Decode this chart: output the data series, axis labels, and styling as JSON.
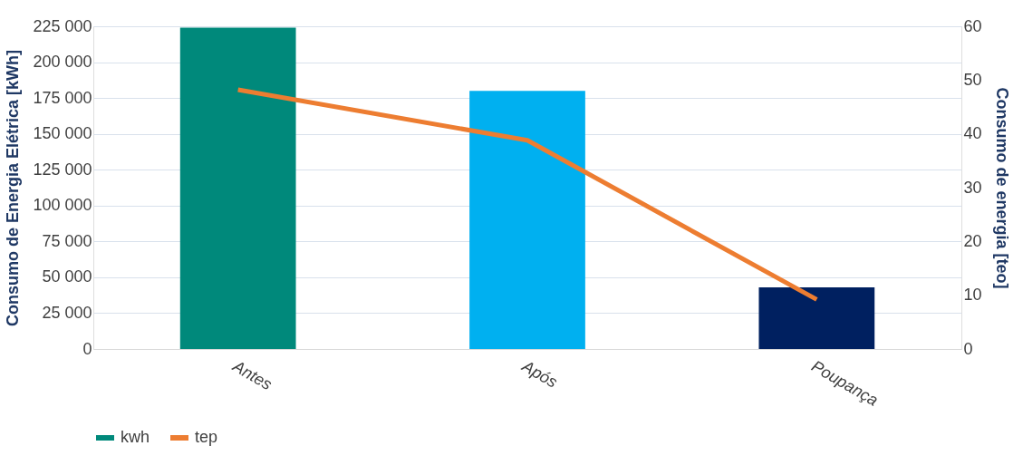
{
  "chart_data": {
    "type": "bar",
    "categories": [
      "Antes",
      "Após",
      "Poupança"
    ],
    "series": [
      {
        "name": "kwh",
        "colors": [
          "#00897b",
          "#00b0f0",
          "#002060"
        ],
        "values": [
          224000,
          180000,
          43000
        ]
      },
      {
        "name": "tep",
        "type": "line",
        "axis": "y2",
        "color": "#ed7d31",
        "values": [
          48.2,
          38.8,
          9.2
        ],
        "line_style": "solid"
      }
    ],
    "ylabel": "Consumo de Energia Elétrica [kWh]",
    "y2label": "Consumo de energia [teo]",
    "ylim": [
      0,
      225000
    ],
    "yticks": [
      {
        "value": 0,
        "label": "0"
      },
      {
        "value": 25000,
        "label": "25 000"
      },
      {
        "value": 50000,
        "label": "50 000"
      },
      {
        "value": 75000,
        "label": "75 000"
      },
      {
        "value": 100000,
        "label": "100 000"
      },
      {
        "value": 125000,
        "label": "125 000"
      },
      {
        "value": 150000,
        "label": "150 000"
      },
      {
        "value": 175000,
        "label": "175 000"
      },
      {
        "value": 200000,
        "label": "200 000"
      },
      {
        "value": 225000,
        "label": "225 000"
      }
    ],
    "y2lim": [
      0,
      60
    ],
    "y2ticks": [
      0,
      10,
      20,
      30,
      40,
      50,
      60
    ],
    "grid": "y",
    "legend": "bottom"
  }
}
